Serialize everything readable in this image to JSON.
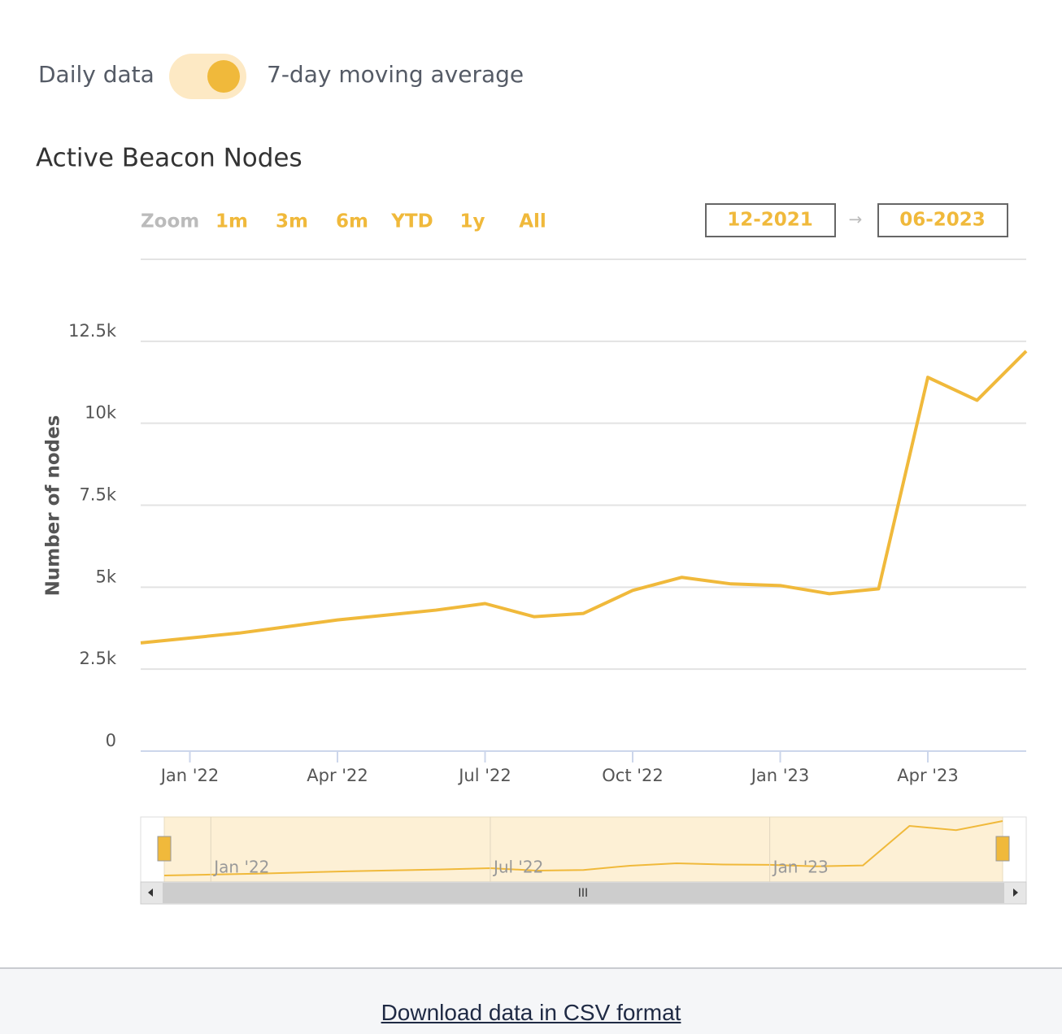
{
  "toggle": {
    "left_label": "Daily data",
    "right_label": "7-day moving average"
  },
  "zoom": {
    "label": "Zoom",
    "buttons": [
      "1m",
      "3m",
      "6m",
      "YTD",
      "1y",
      "All"
    ]
  },
  "range": {
    "from": "12-2021",
    "to": "06-2023"
  },
  "chart_data": {
    "type": "line",
    "title": "Active Beacon Nodes",
    "y_label": "Number of nodes",
    "x": [
      "2021-12",
      "2022-01",
      "2022-02",
      "2022-03",
      "2022-04",
      "2022-05",
      "2022-06",
      "2022-07",
      "2022-08",
      "2022-09",
      "2022-10",
      "2022-11",
      "2022-12",
      "2023-01",
      "2023-02",
      "2023-03",
      "2023-04",
      "2023-05",
      "2023-06"
    ],
    "series": [
      {
        "color": "#f0b93b",
        "values": [
          3300,
          3450,
          3600,
          3800,
          4000,
          4150,
          4300,
          4500,
          4100,
          4200,
          4900,
          5300,
          5100,
          5050,
          4800,
          4950,
          11400,
          10700,
          12200
        ]
      }
    ],
    "xlim": [
      "2021-12",
      "2023-06"
    ],
    "xticks": [
      {
        "value": "2022-01",
        "label": "Jan '22"
      },
      {
        "value": "2022-04",
        "label": "Apr '22"
      },
      {
        "value": "2022-07",
        "label": "Jul '22"
      },
      {
        "value": "2022-10",
        "label": "Oct '22"
      },
      {
        "value": "2023-01",
        "label": "Jan '23"
      },
      {
        "value": "2023-04",
        "label": "Apr '23"
      }
    ],
    "ylim": [
      0,
      15000
    ],
    "yticks": [
      0,
      {
        "value": 2500,
        "label": "2.5k"
      },
      {
        "value": 5000,
        "label": "5k"
      },
      {
        "value": 7500,
        "label": "7.5k"
      },
      {
        "value": 10000,
        "label": "10k"
      },
      {
        "value": 12500,
        "label": "12.5k"
      }
    ],
    "grid": true
  },
  "navigator": {
    "xticks": [
      {
        "value": "2022-01",
        "label": "Jan '22"
      },
      {
        "value": "2022-07",
        "label": "Jul '22"
      },
      {
        "value": "2023-01",
        "label": "Jan '23"
      }
    ]
  },
  "footer": {
    "link": "Download data in CSV format"
  }
}
